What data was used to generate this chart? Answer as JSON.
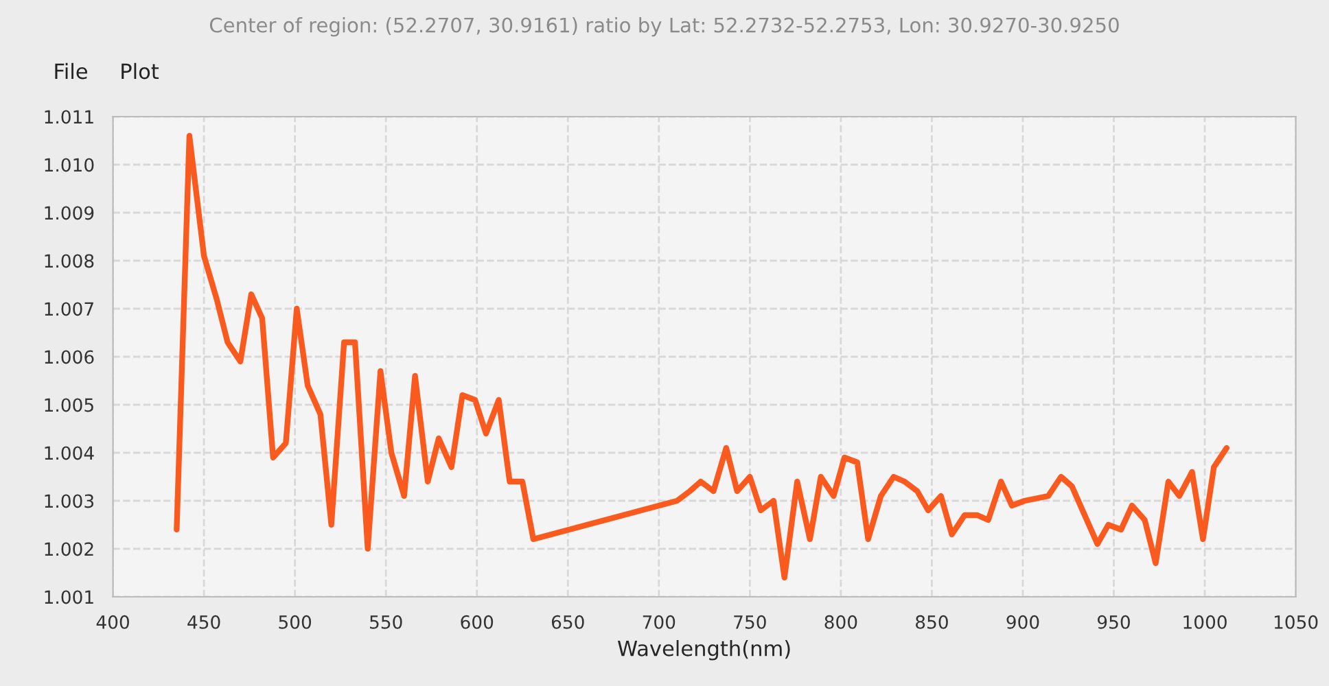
{
  "chart_data": {
    "type": "line",
    "title": "Center of region: (52.2707, 30.9161) ratio by Lat: 52.2732-52.2753, Lon: 30.9270-30.9250",
    "annotations": [
      "File",
      "Plot"
    ],
    "xlabel": "Wavelength(nm)",
    "x": [
      435,
      442,
      450,
      457,
      463,
      470,
      476,
      482,
      488,
      495,
      501,
      507,
      514,
      520,
      527,
      533,
      540,
      547,
      553,
      560,
      566,
      573,
      579,
      586,
      592,
      599,
      605,
      612,
      618,
      625,
      631,
      710,
      717,
      723,
      730,
      737,
      743,
      750,
      756,
      763,
      769,
      776,
      783,
      789,
      796,
      802,
      809,
      815,
      822,
      829,
      835,
      842,
      848,
      855,
      861,
      868,
      875,
      881,
      888,
      894,
      901,
      914,
      921,
      927,
      934,
      941,
      947,
      954,
      960,
      967,
      973,
      980,
      986,
      993,
      999,
      1005,
      1012
    ],
    "series": [
      {
        "color": "#fa5a1e",
        "values": [
          1.0024,
          1.0106,
          1.0081,
          1.0072,
          1.0063,
          1.0059,
          1.0073,
          1.0068,
          1.0039,
          1.0042,
          1.007,
          1.0054,
          1.0048,
          1.0025,
          1.0063,
          1.0063,
          1.002,
          1.0057,
          1.004,
          1.0031,
          1.0056,
          1.0034,
          1.0043,
          1.0037,
          1.0052,
          1.0051,
          1.0044,
          1.0051,
          1.0034,
          1.0034,
          1.0022,
          1.003,
          1.0032,
          1.0034,
          1.0032,
          1.0041,
          1.0032,
          1.0035,
          1.0028,
          1.003,
          1.0014,
          1.0034,
          1.0022,
          1.0035,
          1.0031,
          1.0039,
          1.0038,
          1.0022,
          1.0031,
          1.0035,
          1.0034,
          1.0032,
          1.0028,
          1.0031,
          1.0023,
          1.0027,
          1.0027,
          1.0026,
          1.0034,
          1.0029,
          1.003,
          1.0031,
          1.0035,
          1.0033,
          1.0027,
          1.0021,
          1.0025,
          1.0024,
          1.0029,
          1.0026,
          1.0017,
          1.0034,
          1.0031,
          1.0036,
          1.0022,
          1.0037,
          1.0041
        ]
      }
    ],
    "xlim": [
      400,
      1050
    ],
    "xticks": [
      400,
      450,
      500,
      550,
      600,
      650,
      700,
      750,
      800,
      850,
      900,
      950,
      1000,
      1050
    ],
    "ylim": [
      1.001,
      1.011
    ],
    "yticks": [
      1.001,
      1.002,
      1.003,
      1.004,
      1.005,
      1.006,
      1.007,
      1.008,
      1.009,
      {
        "value": 1.01,
        "label": "1.010"
      },
      1.011
    ],
    "grid": true,
    "line_style": "solid",
    "marker": "none",
    "legend": false
  }
}
